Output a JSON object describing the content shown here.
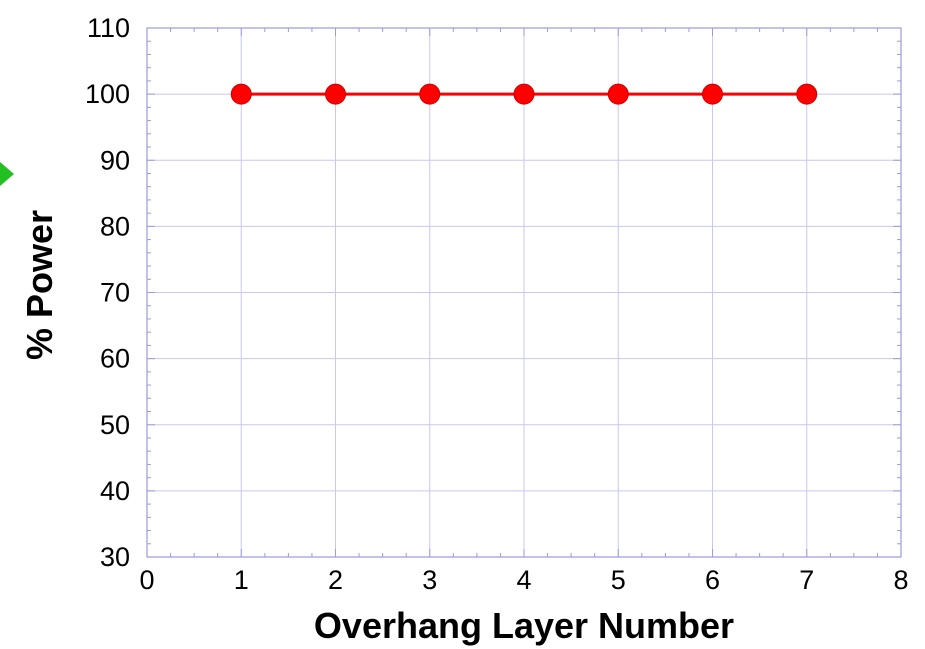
{
  "chart_data": {
    "type": "line",
    "title": "",
    "xlabel": "Overhang Layer Number",
    "ylabel": "% Power",
    "xlim": [
      0,
      8
    ],
    "ylim": [
      30,
      110
    ],
    "x_ticks": [
      "0",
      "1",
      "2",
      "3",
      "4",
      "5",
      "6",
      "7",
      "8"
    ],
    "y_ticks": [
      "30",
      "40",
      "50",
      "60",
      "70",
      "80",
      "90",
      "100",
      "110"
    ],
    "grid": true,
    "legend": "none",
    "series": [
      {
        "x": [
          1,
          2,
          3,
          4,
          5,
          6,
          7
        ],
        "y": [
          100,
          100,
          100,
          100,
          100,
          100,
          100
        ],
        "color": "#ff0000",
        "marker": "circle"
      }
    ],
    "colors": {
      "grid": "#c8c8f0",
      "frame": "#9a9ae0",
      "series": "#ff0000",
      "marker_edge": "#cc0000",
      "arrow": "#22c020"
    },
    "annotations": [
      {
        "type": "arrow-tip",
        "color": "#22c020",
        "icon": "green-arrow-icon"
      }
    ]
  }
}
